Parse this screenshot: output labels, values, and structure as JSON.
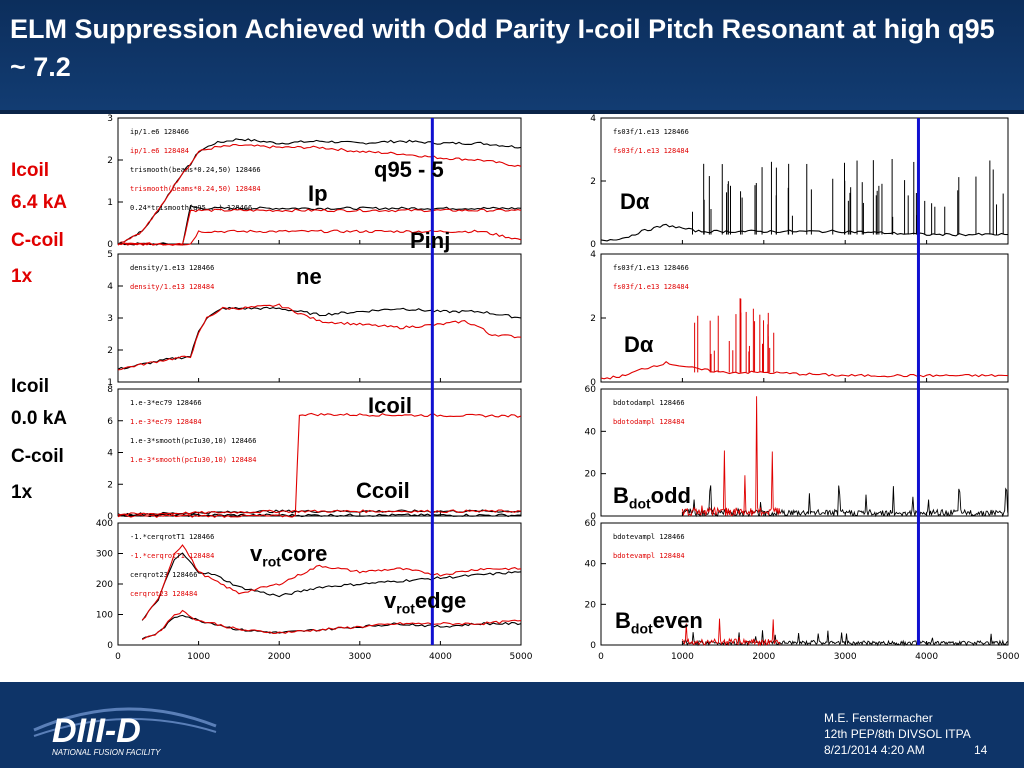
{
  "title": "ELM Suppression Achieved with Odd Parity I-coil Pitch Resonant at high q95 ~ 7.2",
  "side_labels": {
    "upper": [
      "Icoil",
      "6.4 kA",
      "C-coil",
      "1x"
    ],
    "lower": [
      "Icoil",
      "0.0 kA",
      "C-coil",
      "1x"
    ]
  },
  "annotations": {
    "q95": "q95 - 5",
    "ip": "Ip",
    "pinj": "Pinj",
    "ne": "ne",
    "icoil": "Icoil",
    "ccoil": "Ccoil",
    "vrot_v": "v",
    "vrot_sub": "rot",
    "vrot_core": "core",
    "vrot_edge": "edge",
    "dalpha": "Dα",
    "bdot_b": "B",
    "bdot_sub": "dot",
    "bdot_odd": "odd",
    "bdot_even": "even"
  },
  "footer": {
    "author": "M.E. Fenstermacher",
    "meeting": "12th PEP/8th DIVSOL ITPA",
    "date": "8/21/2014 4:20 AM",
    "page": "14",
    "logo_text": "DIII-D",
    "logo_sub": "NATIONAL FUSION FACILITY"
  },
  "colors": {
    "shot_128466": "#000000",
    "shot_128484": "#e00000",
    "marker": "#1010d0"
  },
  "chart_data": [
    {
      "type": "line",
      "panel": "left-1",
      "ylim": [
        0,
        3
      ],
      "yticks": [
        "0",
        "1",
        "2",
        "3"
      ],
      "legend": [
        "ip/1.e6   128466",
        "ip/1.e6   128484",
        "trismooth(beams*0.24,50)   128466",
        "trismooth(beams*0.24,50)   128484",
        "0.24*trismooth(q95...)   128466"
      ],
      "series": [
        {
          "name": "ip 128466",
          "color": "#000000",
          "x": [
            0,
            300,
            500,
            700,
            800,
            900,
            1000,
            1200,
            1500,
            2000,
            2500,
            3000,
            3500,
            4000,
            4500,
            5000
          ],
          "y": [
            0,
            0.3,
            0.8,
            1.4,
            1.7,
            1.9,
            2.2,
            2.4,
            2.5,
            2.4,
            2.45,
            2.4,
            2.45,
            2.4,
            2.4,
            2.3
          ]
        },
        {
          "name": "ip 128484",
          "color": "#e00000",
          "x": [
            0,
            300,
            500,
            700,
            800,
            900,
            1000,
            1200,
            1500,
            2000,
            2500,
            3000,
            3500,
            4000,
            4500,
            5000
          ],
          "y": [
            0,
            0.3,
            0.8,
            1.4,
            1.7,
            1.9,
            2.2,
            2.3,
            2.35,
            2.3,
            2.3,
            2.2,
            2.15,
            2.05,
            2.0,
            1.85
          ]
        },
        {
          "name": "pinj 128466",
          "color": "#000000",
          "x": [
            0,
            800,
            900,
            1000,
            2000,
            3000,
            4000,
            4500,
            5000
          ],
          "y": [
            0,
            0,
            0.9,
            0.85,
            0.85,
            0.85,
            0.85,
            0.85,
            0.85
          ]
        },
        {
          "name": "pinj 128484",
          "color": "#e00000",
          "x": [
            0,
            800,
            900,
            1000,
            2000,
            3000,
            4000,
            4500,
            5000
          ],
          "y": [
            0,
            0,
            0.8,
            0.8,
            0.8,
            0.8,
            0.8,
            0.8,
            0.8
          ]
        },
        {
          "name": "q95 128484",
          "color": "#e00000",
          "x": [
            0,
            900,
            1000,
            2000,
            3000,
            3500,
            4000,
            4500,
            5000
          ],
          "y": [
            0,
            0,
            0.3,
            0.3,
            0.3,
            0.3,
            0.3,
            0.3,
            0.1
          ]
        }
      ]
    },
    {
      "type": "line",
      "panel": "left-2",
      "ylim": [
        1,
        5
      ],
      "yticks": [
        "1",
        "2",
        "3",
        "4",
        "5"
      ],
      "legend": [
        "density/1.e13   128466",
        "density/1.e13   128484"
      ],
      "series": [
        {
          "name": "density 128466",
          "color": "#000000",
          "x": [
            0,
            400,
            600,
            900,
            1000,
            1100,
            1300,
            1500,
            2000,
            2500,
            3000,
            3500,
            4000,
            4500,
            5000
          ],
          "y": [
            1.4,
            1.6,
            1.7,
            1.8,
            2.6,
            3.0,
            3.3,
            3.3,
            3.3,
            3.1,
            3.2,
            3.3,
            3.2,
            3.2,
            3.0
          ]
        },
        {
          "name": "density 128484",
          "color": "#e00000",
          "x": [
            0,
            400,
            600,
            900,
            1000,
            1100,
            1300,
            1500,
            2000,
            2500,
            3000,
            3500,
            4000,
            4300,
            4500,
            4600,
            5000
          ],
          "y": [
            1.4,
            1.6,
            1.7,
            1.8,
            2.5,
            3.0,
            3.3,
            3.3,
            3.4,
            2.9,
            2.8,
            2.7,
            2.8,
            2.9,
            2.7,
            2.5,
            2.4
          ]
        }
      ]
    },
    {
      "type": "line",
      "panel": "left-3",
      "ylim": [
        0,
        8
      ],
      "yticks": [
        "0",
        "2",
        "4",
        "6",
        "8"
      ],
      "legend": [
        "1.e-3*ec79   128466",
        "1.e-3*ec79   128484",
        "1.e-3*smooth(pcIu30,10)   128466",
        "1.e-3*smooth(pcIu30,10)   128484"
      ],
      "series": [
        {
          "name": "icoil 128466",
          "color": "#000000",
          "x": [
            0,
            5000
          ],
          "y": [
            0.05,
            0.05
          ]
        },
        {
          "name": "icoil 128484",
          "color": "#e00000",
          "x": [
            0,
            2200,
            2250,
            2400,
            5000
          ],
          "y": [
            0,
            0,
            6.4,
            6.4,
            6.3
          ]
        },
        {
          "name": "ccoil 128466",
          "color": "#000000",
          "x": [
            0,
            1000,
            2000,
            5000
          ],
          "y": [
            0.1,
            0.2,
            0.3,
            0.3
          ]
        },
        {
          "name": "ccoil 128484",
          "color": "#e00000",
          "x": [
            0,
            1000,
            2000,
            5000
          ],
          "y": [
            0.1,
            0.2,
            0.3,
            0.3
          ]
        }
      ]
    },
    {
      "type": "line",
      "panel": "left-4",
      "ylim": [
        0,
        400
      ],
      "yticks": [
        "0",
        "100",
        "200",
        "300",
        "400"
      ],
      "legend": [
        "-1.*cerqrotT1   128466",
        "-1.*cerqrotT1   128484",
        "cerqrot23   128466",
        "cerqrot23   128484"
      ],
      "series": [
        {
          "name": "core 128466",
          "color": "#000000",
          "x": [
            300,
            500,
            700,
            800,
            1000,
            1200,
            1500,
            2000,
            2500,
            3000,
            3500,
            4000,
            4500,
            5000
          ],
          "y": [
            80,
            150,
            280,
            300,
            240,
            230,
            190,
            160,
            190,
            200,
            210,
            220,
            230,
            240
          ]
        },
        {
          "name": "core 128484",
          "color": "#e00000",
          "x": [
            300,
            500,
            700,
            800,
            1000,
            1200,
            1500,
            2000,
            2500,
            3000,
            3500,
            4000,
            4500,
            5000
          ],
          "y": [
            80,
            150,
            300,
            330,
            240,
            210,
            170,
            200,
            260,
            240,
            250,
            230,
            250,
            250
          ]
        },
        {
          "name": "edge 128466",
          "color": "#000000",
          "x": [
            300,
            500,
            700,
            800,
            1000,
            1200,
            1500,
            2000,
            2500,
            3000,
            3500,
            4000,
            4500,
            5000
          ],
          "y": [
            20,
            40,
            90,
            100,
            80,
            70,
            50,
            40,
            50,
            60,
            70,
            60,
            70,
            70
          ]
        },
        {
          "name": "edge 128484",
          "color": "#e00000",
          "x": [
            300,
            500,
            700,
            800,
            1000,
            1200,
            1500,
            2000,
            2500,
            3000,
            3500,
            4000,
            4500,
            5000
          ],
          "y": [
            20,
            40,
            100,
            110,
            80,
            70,
            50,
            40,
            50,
            60,
            70,
            70,
            70,
            80
          ]
        }
      ]
    },
    {
      "type": "line",
      "panel": "right-1",
      "ylim": [
        0,
        4
      ],
      "yticks": [
        "0",
        "2",
        "4"
      ],
      "legend": [
        "fs03f/1.e13   128466",
        "fs03f/1.e13   128484"
      ],
      "series": [
        {
          "name": "dalpha 128466",
          "color": "#000000",
          "x": [
            0,
            300,
            500,
            800,
            1000,
            1200,
            1500,
            2000,
            3000,
            4000,
            5000
          ],
          "y": [
            0.1,
            0.2,
            0.4,
            0.6,
            0.5,
            0.4,
            0.4,
            0.4,
            0.4,
            0.3,
            0.3
          ],
          "spikes": {
            "from": 1000,
            "to": 5000,
            "count": 55,
            "max": 2.7
          }
        }
      ]
    },
    {
      "type": "line",
      "panel": "right-2",
      "ylim": [
        0,
        4
      ],
      "yticks": [
        "0",
        "2",
        "4"
      ],
      "legend": [
        "fs03f/1.e13   128466",
        "fs03f/1.e13   128484"
      ],
      "series": [
        {
          "name": "dalpha 128484",
          "color": "#e00000",
          "x": [
            0,
            300,
            500,
            800,
            1000,
            1200,
            1500,
            2000,
            3000,
            4000,
            5000
          ],
          "y": [
            0.1,
            0.2,
            0.4,
            0.6,
            0.5,
            0.4,
            0.3,
            0.3,
            0.2,
            0.2,
            0.2
          ],
          "spikes": {
            "from": 1100,
            "to": 2200,
            "count": 25,
            "max": 2.8
          }
        }
      ]
    },
    {
      "type": "line",
      "panel": "right-3",
      "ylim": [
        0,
        60
      ],
      "yticks": [
        "0",
        "20",
        "40",
        "60"
      ],
      "legend": [
        "bdotodampl   128466",
        "bdotodampl   128484"
      ],
      "series": [
        {
          "name": "bdot odd 128466",
          "color": "#000000",
          "noise": {
            "from": 1000,
            "to": 5000,
            "level": 3,
            "max": 15
          }
        },
        {
          "name": "bdot odd 128484",
          "color": "#e00000",
          "noise": {
            "from": 1000,
            "to": 2200,
            "level": 4,
            "max": 60
          }
        }
      ]
    },
    {
      "type": "line",
      "panel": "right-4",
      "ylim": [
        0,
        60
      ],
      "yticks": [
        "0",
        "20",
        "40",
        "60"
      ],
      "xlim": [
        0,
        5000
      ],
      "xticks": [
        "0",
        "1000",
        "2000",
        "3000",
        "4000",
        "5000"
      ],
      "legend": [
        "bdotevampl   128466",
        "bdotevampl   128484"
      ],
      "series": [
        {
          "name": "bdot even 128466",
          "color": "#000000",
          "noise": {
            "from": 1000,
            "to": 5000,
            "level": 2,
            "max": 10
          }
        },
        {
          "name": "bdot even 128484",
          "color": "#e00000",
          "noise": {
            "from": 1000,
            "to": 2200,
            "level": 3,
            "max": 15
          }
        }
      ]
    }
  ],
  "marker_time": 3900,
  "xticks": [
    "0",
    "1000",
    "2000",
    "3000",
    "4000",
    "5000"
  ]
}
